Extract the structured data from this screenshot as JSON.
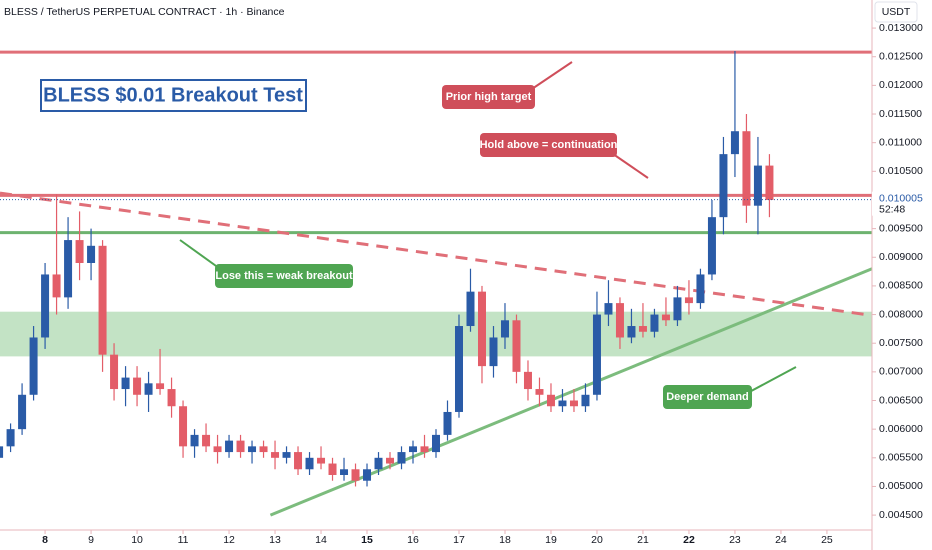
{
  "header": "BLESS / TetherUS PERPETUAL CONTRACT · 1h · Binance",
  "chart_data": {
    "type": "candlestick",
    "title": "BLESS $0.01 Breakout Test",
    "unit": "USDT",
    "up_color": "#2a5ba7",
    "down_color": "#e35d68",
    "xlim": [
      7.02,
      25.98
    ],
    "ylim": [
      0.00424,
      0.01349
    ],
    "xticks": [
      8,
      9,
      10,
      11,
      12,
      13,
      14,
      15,
      16,
      17,
      18,
      19,
      20,
      21,
      22,
      23,
      24,
      25
    ],
    "bold_xticks": [
      8,
      15,
      22
    ],
    "yticks": [
      {
        "value": 0.0045,
        "label": "0.004500"
      },
      {
        "value": 0.005,
        "label": "0.005000"
      },
      {
        "value": 0.0055,
        "label": "0.005500"
      },
      {
        "value": 0.006,
        "label": "0.006000"
      },
      {
        "value": 0.0065,
        "label": "0.006500"
      },
      {
        "value": 0.007,
        "label": "0.007000"
      },
      {
        "value": 0.0075,
        "label": "0.007500"
      },
      {
        "value": 0.008,
        "label": "0.008000"
      },
      {
        "value": 0.0085,
        "label": "0.008500"
      },
      {
        "value": 0.009,
        "label": "0.009000"
      },
      {
        "value": 0.0095,
        "label": "0.009500"
      },
      {
        "value": 0.01,
        "label": "0.010000"
      },
      {
        "value": 0.0105,
        "label": "0.010500"
      },
      {
        "value": 0.011,
        "label": "0.011000"
      },
      {
        "value": 0.0115,
        "label": "0.011500"
      },
      {
        "value": 0.012,
        "label": "0.012000"
      },
      {
        "value": 0.0125,
        "label": "0.012500"
      },
      {
        "value": 0.013,
        "label": "0.013000"
      }
    ],
    "x": [
      7,
      7.25,
      7.5,
      7.75,
      8,
      8.25,
      8.5,
      8.75,
      9,
      9.25,
      9.5,
      9.75,
      10,
      10.25,
      10.5,
      10.75,
      11,
      11.25,
      11.5,
      11.75,
      12,
      12.25,
      12.5,
      12.75,
      13,
      13.25,
      13.5,
      13.75,
      14,
      14.25,
      14.5,
      14.75,
      15,
      15.25,
      15.5,
      15.75,
      16,
      16.25,
      16.5,
      16.75,
      17,
      17.25,
      17.5,
      17.75,
      18,
      18.25,
      18.5,
      18.75,
      19,
      19.25,
      19.5,
      19.75,
      20,
      20.25,
      20.5,
      20.75,
      21,
      21.25,
      21.5,
      21.75,
      22,
      22.25,
      22.5,
      22.75,
      23,
      23.25,
      23.5,
      23.75
    ],
    "open": [
      0.0055,
      0.0057,
      0.006,
      0.0066,
      0.0076,
      0.0087,
      0.0083,
      0.0093,
      0.0089,
      0.0092,
      0.0073,
      0.0067,
      0.0069,
      0.0066,
      0.0068,
      0.0067,
      0.0064,
      0.0057,
      0.0059,
      0.0057,
      0.0056,
      0.0058,
      0.0056,
      0.0057,
      0.0056,
      0.0055,
      0.0056,
      0.0053,
      0.0055,
      0.0054,
      0.0052,
      0.0053,
      0.0051,
      0.0053,
      0.0055,
      0.0054,
      0.0056,
      0.0057,
      0.0056,
      0.0059,
      0.0063,
      0.0078,
      0.0084,
      0.0071,
      0.0076,
      0.0079,
      0.007,
      0.0067,
      0.0066,
      0.0064,
      0.0065,
      0.0064,
      0.0066,
      0.008,
      0.0082,
      0.0076,
      0.0078,
      0.0077,
      0.008,
      0.0079,
      0.0083,
      0.0082,
      0.0087,
      0.0097,
      0.0108,
      0.0112,
      0.0099,
      0.0106
    ],
    "high": [
      0.0058,
      0.0061,
      0.0068,
      0.0078,
      0.0089,
      0.0101,
      0.0097,
      0.0098,
      0.0095,
      0.0093,
      0.0075,
      0.0071,
      0.0071,
      0.007,
      0.0074,
      0.0069,
      0.0065,
      0.006,
      0.0061,
      0.0059,
      0.0059,
      0.0059,
      0.0058,
      0.0058,
      0.0058,
      0.0057,
      0.0057,
      0.0056,
      0.0057,
      0.0055,
      0.0055,
      0.0054,
      0.0054,
      0.0056,
      0.0056,
      0.0057,
      0.0058,
      0.0059,
      0.006,
      0.0065,
      0.008,
      0.0088,
      0.0085,
      0.0078,
      0.0082,
      0.008,
      0.0072,
      0.0069,
      0.0068,
      0.0067,
      0.0067,
      0.0068,
      0.0084,
      0.0086,
      0.0083,
      0.0081,
      0.0082,
      0.0081,
      0.0083,
      0.0085,
      0.0086,
      0.0088,
      0.01,
      0.0111,
      0.0126,
      0.0115,
      0.0111,
      0.0108
    ],
    "low": [
      0.0052,
      0.0056,
      0.0059,
      0.0065,
      0.0074,
      0.008,
      0.0081,
      0.0086,
      0.0086,
      0.007,
      0.0065,
      0.0064,
      0.0064,
      0.0063,
      0.0066,
      0.0062,
      0.0055,
      0.0055,
      0.0056,
      0.0054,
      0.0055,
      0.0055,
      0.0054,
      0.0055,
      0.0053,
      0.0054,
      0.0052,
      0.0052,
      0.0053,
      0.0051,
      0.0051,
      0.005,
      0.005,
      0.0052,
      0.0053,
      0.0053,
      0.0054,
      0.0055,
      0.0055,
      0.0058,
      0.0062,
      0.0077,
      0.0068,
      0.0069,
      0.0074,
      0.0068,
      0.0065,
      0.0064,
      0.0063,
      0.0063,
      0.0063,
      0.0063,
      0.0065,
      0.0078,
      0.0074,
      0.0075,
      0.0076,
      0.0076,
      0.0078,
      0.0078,
      0.008,
      0.0081,
      0.0086,
      0.0094,
      0.0104,
      0.0096,
      0.0094,
      0.0097
    ],
    "close": [
      0.0057,
      0.006,
      0.0066,
      0.0076,
      0.0087,
      0.0083,
      0.0093,
      0.0089,
      0.0092,
      0.0073,
      0.0067,
      0.0069,
      0.0066,
      0.0068,
      0.0067,
      0.0064,
      0.0057,
      0.0059,
      0.0057,
      0.0056,
      0.0058,
      0.0056,
      0.0057,
      0.0056,
      0.0055,
      0.0056,
      0.0053,
      0.0055,
      0.0054,
      0.0052,
      0.0053,
      0.0051,
      0.0053,
      0.0055,
      0.0054,
      0.0056,
      0.0057,
      0.0056,
      0.0059,
      0.0063,
      0.0078,
      0.0084,
      0.0071,
      0.0076,
      0.0079,
      0.007,
      0.0067,
      0.0066,
      0.0064,
      0.0065,
      0.0064,
      0.0066,
      0.008,
      0.0082,
      0.0076,
      0.0078,
      0.0077,
      0.008,
      0.0079,
      0.0083,
      0.0082,
      0.0087,
      0.0097,
      0.0108,
      0.0112,
      0.0099,
      0.0106,
      0.01
    ],
    "levels": [
      {
        "value": 0.01258,
        "color": "#e06f78"
      },
      {
        "value": 0.01008,
        "color": "#e06f78"
      },
      {
        "value": 0.00943,
        "color": "#6db36f"
      }
    ],
    "zone": {
      "low": 0.00727,
      "high": 0.00805,
      "color": "#bde0bf"
    },
    "trendlines": [
      {
        "x": [
          7.02,
          25.85
        ],
        "y": [
          0.01012,
          0.008
        ],
        "color": "#e06f78",
        "dashed": true
      },
      {
        "x": [
          12.9,
          25.98
        ],
        "y": [
          0.0045,
          0.0088
        ],
        "color": "#7cbc7d",
        "dashed": false
      }
    ],
    "callouts": [
      {
        "text": "Prior high target",
        "color": "#cf4e5a"
      },
      {
        "text": "Hold above = continuation",
        "color": "#cf4e5a"
      },
      {
        "text": "Lose this = weak breakout",
        "color": "#4fa552"
      },
      {
        "text": "Deeper demand",
        "color": "#4fa552"
      }
    ],
    "price_tag": {
      "value": 0.010005,
      "countdown": "52:48"
    }
  }
}
